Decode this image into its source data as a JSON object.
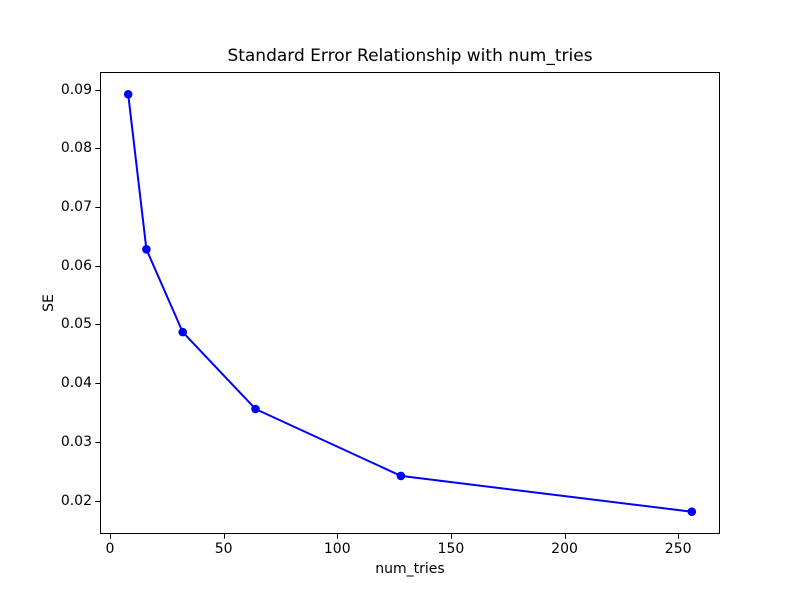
{
  "chart_data": {
    "type": "line",
    "title": "Standard Error Relationship with num_tries",
    "xlabel": "num_tries",
    "ylabel": "SE",
    "x": [
      8,
      16,
      32,
      64,
      128,
      256
    ],
    "y": [
      0.0892,
      0.0628,
      0.0487,
      0.0356,
      0.0242,
      0.0181
    ],
    "series": [
      {
        "name": "SE",
        "values": [
          0.0892,
          0.0628,
          0.0487,
          0.0356,
          0.0242,
          0.0181
        ]
      }
    ],
    "xlim": [
      -4.4,
      268.4
    ],
    "ylim": [
      0.0143,
      0.093
    ],
    "xticks": [
      0,
      50,
      100,
      150,
      200,
      250
    ],
    "xtick_labels": [
      "0",
      "50",
      "100",
      "150",
      "200",
      "250"
    ],
    "yticks": [
      0.02,
      0.03,
      0.04,
      0.05,
      0.06,
      0.07,
      0.08,
      0.09
    ],
    "ytick_labels": [
      "0.02",
      "0.03",
      "0.04",
      "0.05",
      "0.06",
      "0.07",
      "0.08",
      "0.09"
    ],
    "grid": false,
    "legend": null,
    "line_color": "#0000ff",
    "marker": "circle",
    "axis_color": "#000000",
    "background_color": "#ffffff"
  }
}
